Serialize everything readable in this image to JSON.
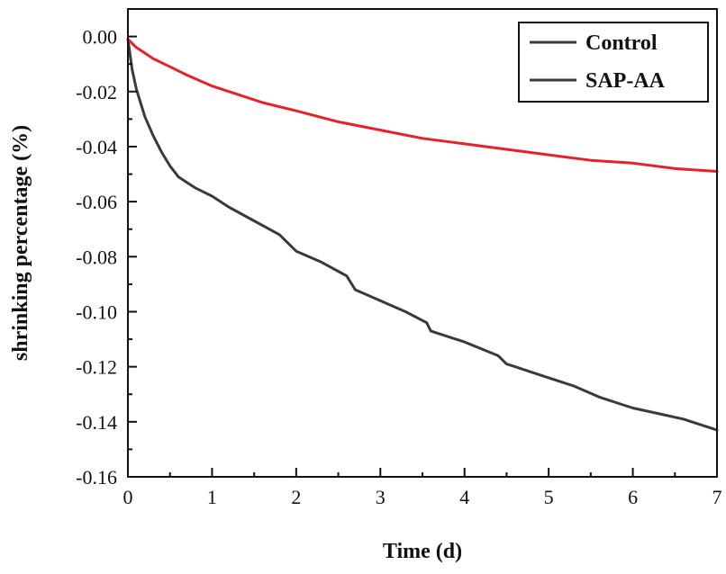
{
  "chart_data": {
    "type": "line",
    "title": "",
    "xlabel": "Time (d)",
    "ylabel": "shrinking percentage (%)",
    "xlim": [
      0,
      7
    ],
    "ylim": [
      -0.16,
      0.01
    ],
    "x_ticks": [
      0,
      1,
      2,
      3,
      4,
      5,
      6,
      7
    ],
    "x_tick_labels": [
      "0",
      "1",
      "2",
      "3",
      "4",
      "5",
      "6",
      "7"
    ],
    "y_ticks": [
      0.0,
      -0.02,
      -0.04,
      -0.06,
      -0.08,
      -0.1,
      -0.12,
      -0.14,
      -0.16
    ],
    "y_tick_labels": [
      "0.00",
      "-0.02",
      "-0.04",
      "-0.06",
      "-0.08",
      "-0.10",
      "-0.12",
      "-0.14",
      "-0.16"
    ],
    "grid": false,
    "legend_position": "top-right",
    "series": [
      {
        "name": "Control",
        "color": "#3a3a3a",
        "x": [
          0,
          0.05,
          0.1,
          0.15,
          0.2,
          0.3,
          0.4,
          0.5,
          0.6,
          0.7,
          0.8,
          1.0,
          1.2,
          1.5,
          1.8,
          2.0,
          2.3,
          2.6,
          2.7,
          3.0,
          3.3,
          3.55,
          3.6,
          4.0,
          4.4,
          4.5,
          4.6,
          4.8,
          5.0,
          5.3,
          5.6,
          5.9,
          6.0,
          6.3,
          6.6,
          6.9,
          7.0
        ],
        "values": [
          -0.001,
          -0.012,
          -0.019,
          -0.024,
          -0.029,
          -0.036,
          -0.042,
          -0.047,
          -0.051,
          -0.053,
          -0.055,
          -0.058,
          -0.062,
          -0.067,
          -0.072,
          -0.078,
          -0.082,
          -0.087,
          -0.092,
          -0.096,
          -0.1,
          -0.104,
          -0.107,
          -0.111,
          -0.116,
          -0.119,
          -0.12,
          -0.122,
          -0.124,
          -0.127,
          -0.131,
          -0.134,
          -0.135,
          -0.137,
          -0.139,
          -0.142,
          -0.143
        ]
      },
      {
        "name": "SAP-AA",
        "color": "#e8202a",
        "x": [
          0,
          0.1,
          0.2,
          0.3,
          0.5,
          0.7,
          1.0,
          1.3,
          1.6,
          2.0,
          2.5,
          3.0,
          3.5,
          4.0,
          4.5,
          5.0,
          5.5,
          6.0,
          6.5,
          7.0
        ],
        "values": [
          -0.001,
          -0.004,
          -0.006,
          -0.008,
          -0.011,
          -0.014,
          -0.018,
          -0.021,
          -0.024,
          -0.027,
          -0.031,
          -0.034,
          -0.037,
          -0.039,
          -0.041,
          -0.043,
          -0.045,
          -0.046,
          -0.048,
          -0.049
        ]
      }
    ]
  }
}
